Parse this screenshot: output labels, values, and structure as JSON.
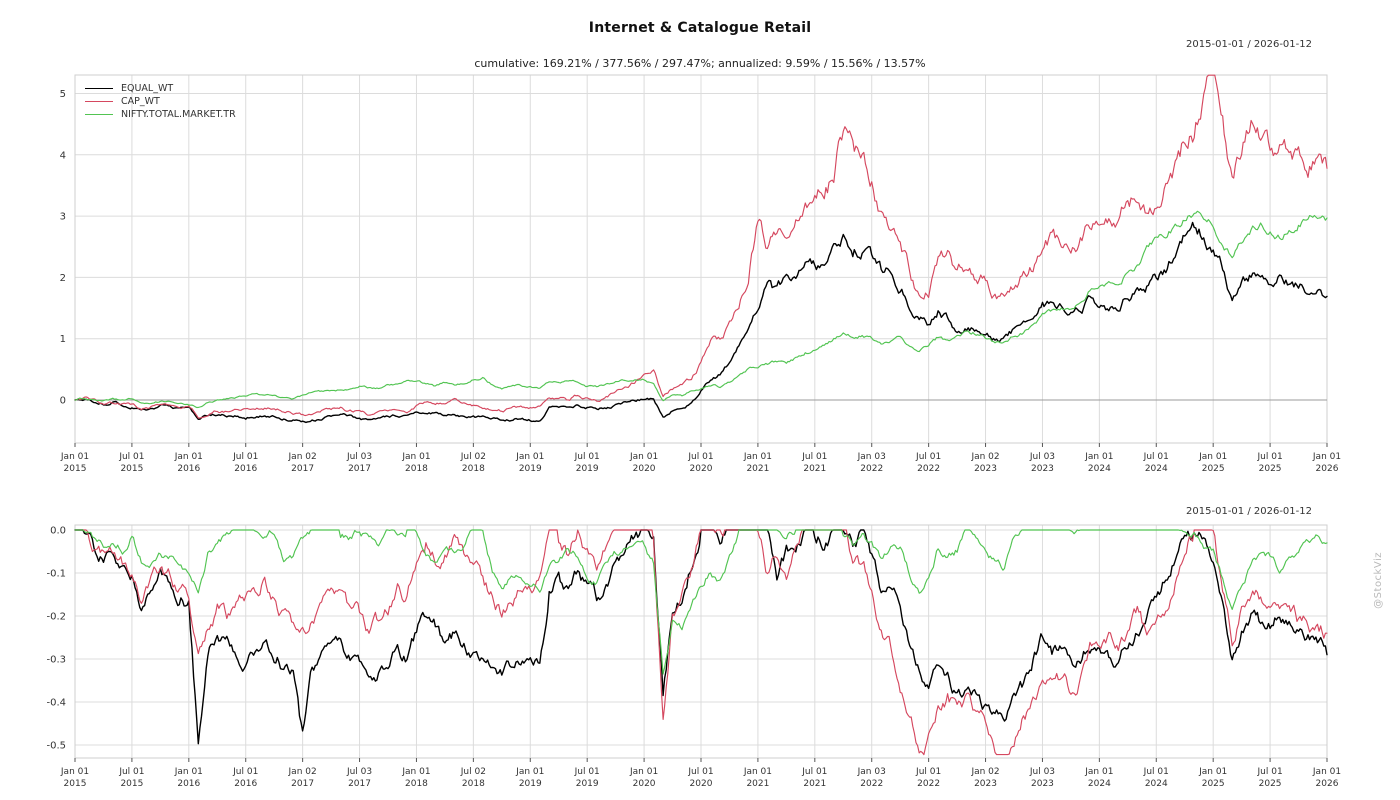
{
  "title": "Internet & Catalogue Retail",
  "subtitle": "cumulative: 169.21% / 377.56% / 297.47%; annualized: 9.59% / 15.56% / 13.57%",
  "date_range": "2015-01-01 / 2026-01-12",
  "watermark": "@StockViz",
  "colors": {
    "equal_wt": "#000000",
    "cap_wt": "#d5485f",
    "nifty": "#52c452",
    "grid": "#dcdcdc",
    "border": "#cfcfcf",
    "zero_line": "#9b9b9b",
    "tick": "#555555",
    "axis_text": "#333333",
    "watermark": "#b9b9b9"
  },
  "chart_data": [
    {
      "type": "line",
      "panel": "cumulative-return",
      "title": "Internet & Catalogue Retail",
      "subtitle": "cumulative: 169.21% / 377.56% / 297.47%; annualized: 9.59% / 15.56% / 13.57%",
      "x_unit": "month",
      "x_start": "2015-01",
      "x_end": "2026-01",
      "grid": true,
      "legend_position": "top-left",
      "ylim": [
        -0.7,
        5.3
      ],
      "yticks": [
        0,
        1,
        2,
        3,
        4,
        5
      ],
      "x_tick_labels": [
        [
          "Jan 01",
          "2015"
        ],
        [
          "Jul 01",
          "2015"
        ],
        [
          "Jan 01",
          "2016"
        ],
        [
          "Jul 01",
          "2016"
        ],
        [
          "Jan 02",
          "2017"
        ],
        [
          "Jul 03",
          "2017"
        ],
        [
          "Jan 01",
          "2018"
        ],
        [
          "Jul 02",
          "2018"
        ],
        [
          "Jan 01",
          "2019"
        ],
        [
          "Jul 01",
          "2019"
        ],
        [
          "Jan 01",
          "2020"
        ],
        [
          "Jul 01",
          "2020"
        ],
        [
          "Jan 01",
          "2021"
        ],
        [
          "Jul 01",
          "2021"
        ],
        [
          "Jan 03",
          "2022"
        ],
        [
          "Jul 01",
          "2022"
        ],
        [
          "Jan 02",
          "2023"
        ],
        [
          "Jul 03",
          "2023"
        ],
        [
          "Jan 01",
          "2024"
        ],
        [
          "Jul 01",
          "2024"
        ],
        [
          "Jan 01",
          "2025"
        ],
        [
          "Jul 01",
          "2025"
        ],
        [
          "Jan 01",
          "2026"
        ]
      ],
      "series": [
        {
          "name": "EQUAL_WT",
          "color": "#000000",
          "end_value": 1.6921,
          "values": [
            0.0,
            0.01,
            -0.03,
            -0.06,
            -0.04,
            -0.09,
            -0.11,
            -0.18,
            -0.13,
            -0.09,
            -0.11,
            -0.14,
            -0.15,
            -0.3,
            -0.26,
            -0.24,
            -0.26,
            -0.27,
            -0.29,
            -0.26,
            -0.24,
            -0.27,
            -0.3,
            -0.33,
            -0.36,
            -0.33,
            -0.3,
            -0.27,
            -0.25,
            -0.28,
            -0.3,
            -0.34,
            -0.32,
            -0.29,
            -0.26,
            -0.28,
            -0.23,
            -0.19,
            -0.22,
            -0.25,
            -0.23,
            -0.26,
            -0.28,
            -0.29,
            -0.31,
            -0.33,
            -0.31,
            -0.3,
            -0.32,
            -0.31,
            -0.13,
            -0.11,
            -0.14,
            -0.09,
            -0.12,
            -0.15,
            -0.12,
            -0.08,
            -0.04,
            0.0,
            0.03,
            0.01,
            -0.28,
            -0.18,
            -0.12,
            -0.04,
            0.15,
            0.3,
            0.4,
            0.6,
            0.9,
            1.2,
            1.55,
            2.1,
            1.8,
            1.95,
            1.85,
            2.15,
            2.25,
            2.2,
            2.35,
            2.55,
            2.4,
            2.5,
            2.3,
            2.05,
            2.15,
            1.9,
            1.6,
            1.35,
            1.25,
            1.45,
            1.35,
            1.15,
            1.2,
            1.15,
            1.08,
            1.0,
            1.02,
            1.12,
            1.25,
            1.5,
            1.65,
            1.52,
            1.58,
            1.42,
            1.48,
            1.58,
            1.52,
            1.45,
            1.48,
            1.68,
            1.78,
            1.85,
            2.0,
            2.15,
            2.35,
            2.6,
            2.78,
            2.7,
            2.55,
            2.15,
            1.62,
            1.92,
            2.08,
            1.95,
            1.92,
            2.02,
            1.95,
            1.88,
            1.82,
            1.75,
            1.69
          ]
        },
        {
          "name": "CAP_WT",
          "color": "#d5485f",
          "end_value": 3.7756,
          "values": [
            0.0,
            0.01,
            -0.02,
            -0.05,
            -0.03,
            -0.07,
            -0.09,
            -0.15,
            -0.11,
            -0.08,
            -0.1,
            -0.12,
            -0.13,
            -0.28,
            -0.23,
            -0.17,
            -0.19,
            -0.18,
            -0.16,
            -0.13,
            -0.11,
            -0.14,
            -0.18,
            -0.21,
            -0.24,
            -0.22,
            -0.18,
            -0.15,
            -0.13,
            -0.17,
            -0.19,
            -0.23,
            -0.21,
            -0.17,
            -0.13,
            -0.15,
            -0.08,
            -0.03,
            -0.06,
            -0.04,
            -0.01,
            -0.05,
            -0.08,
            -0.11,
            -0.14,
            -0.17,
            -0.14,
            -0.12,
            -0.14,
            -0.11,
            0.02,
            0.05,
            0.0,
            0.08,
            0.04,
            0.0,
            0.04,
            0.12,
            0.22,
            0.3,
            0.38,
            0.45,
            0.02,
            0.18,
            0.25,
            0.33,
            0.6,
            0.9,
            1.0,
            1.2,
            1.6,
            2.1,
            3.0,
            2.6,
            2.75,
            2.6,
            2.85,
            3.0,
            3.2,
            3.5,
            3.6,
            4.35,
            4.0,
            3.85,
            3.65,
            3.1,
            2.85,
            2.45,
            2.1,
            1.7,
            1.8,
            2.2,
            2.3,
            2.1,
            2.2,
            2.0,
            1.95,
            1.7,
            1.65,
            1.85,
            2.05,
            2.2,
            2.45,
            2.6,
            2.5,
            2.35,
            2.55,
            2.85,
            2.9,
            3.0,
            2.95,
            3.2,
            3.3,
            3.0,
            3.25,
            3.45,
            3.7,
            4.2,
            4.4,
            4.9,
            5.3,
            4.5,
            3.7,
            4.2,
            4.45,
            4.3,
            4.15,
            4.05,
            4.15,
            4.0,
            3.95,
            3.88,
            3.78
          ]
        },
        {
          "name": "NIFTY.TOTAL.MARKET.TR",
          "color": "#52c452",
          "end_value": 2.9747,
          "values": [
            0.0,
            0.03,
            0.01,
            -0.01,
            0.01,
            -0.01,
            0.02,
            -0.04,
            -0.04,
            -0.02,
            -0.03,
            -0.04,
            -0.07,
            -0.12,
            -0.03,
            0.0,
            0.02,
            0.04,
            0.07,
            0.09,
            0.08,
            0.09,
            0.03,
            0.02,
            0.07,
            0.11,
            0.13,
            0.15,
            0.17,
            0.17,
            0.22,
            0.2,
            0.19,
            0.25,
            0.24,
            0.29,
            0.33,
            0.26,
            0.22,
            0.28,
            0.26,
            0.28,
            0.33,
            0.38,
            0.25,
            0.18,
            0.23,
            0.23,
            0.21,
            0.2,
            0.28,
            0.29,
            0.31,
            0.3,
            0.22,
            0.21,
            0.26,
            0.3,
            0.32,
            0.34,
            0.33,
            0.27,
            0.0,
            0.1,
            0.07,
            0.15,
            0.2,
            0.25,
            0.22,
            0.28,
            0.4,
            0.52,
            0.55,
            0.58,
            0.62,
            0.6,
            0.68,
            0.78,
            0.8,
            0.88,
            1.0,
            1.1,
            1.02,
            1.05,
            1.02,
            0.95,
            1.0,
            1.02,
            0.9,
            0.78,
            0.9,
            1.02,
            0.95,
            1.0,
            1.1,
            1.08,
            1.02,
            0.95,
            0.92,
            1.05,
            1.12,
            1.22,
            1.38,
            1.42,
            1.5,
            1.45,
            1.58,
            1.78,
            1.85,
            1.95,
            2.0,
            2.1,
            2.2,
            2.45,
            2.6,
            2.72,
            2.85,
            2.95,
            3.07,
            2.95,
            2.88,
            2.6,
            2.35,
            2.6,
            2.75,
            2.88,
            2.82,
            2.72,
            2.8,
            2.88,
            2.95,
            3.0,
            2.97
          ]
        }
      ]
    },
    {
      "type": "line",
      "panel": "drawdown",
      "x_unit": "month",
      "x_start": "2015-01",
      "x_end": "2026-01",
      "grid": true,
      "ylim": [
        -0.53,
        0.01
      ],
      "yticks": [
        0.0,
        -0.1,
        -0.2,
        -0.3,
        -0.4,
        -0.5
      ],
      "series": [
        {
          "name": "EQUAL_WT",
          "color": "#000000",
          "values": [
            0.0,
            0.0,
            -0.04,
            -0.07,
            -0.05,
            -0.1,
            -0.12,
            -0.19,
            -0.14,
            -0.1,
            -0.12,
            -0.15,
            -0.16,
            -0.5,
            -0.27,
            -0.25,
            -0.27,
            -0.28,
            -0.3,
            -0.27,
            -0.25,
            -0.28,
            -0.31,
            -0.34,
            -0.49,
            -0.34,
            -0.31,
            -0.28,
            -0.26,
            -0.29,
            -0.31,
            -0.35,
            -0.33,
            -0.3,
            -0.27,
            -0.29,
            -0.24,
            -0.2,
            -0.23,
            -0.26,
            -0.24,
            -0.27,
            -0.29,
            -0.3,
            -0.32,
            -0.34,
            -0.32,
            -0.31,
            -0.33,
            -0.32,
            -0.14,
            -0.12,
            -0.15,
            -0.1,
            -0.13,
            -0.16,
            -0.13,
            -0.09,
            -0.05,
            -0.01,
            0.0,
            -0.02,
            -0.38,
            -0.2,
            -0.15,
            -0.07,
            0.0,
            0.0,
            -0.03,
            0.0,
            0.0,
            0.0,
            0.0,
            0.0,
            -0.1,
            -0.05,
            -0.08,
            0.0,
            0.0,
            -0.02,
            0.0,
            0.0,
            -0.04,
            -0.01,
            -0.07,
            -0.14,
            -0.11,
            -0.18,
            -0.27,
            -0.34,
            -0.37,
            -0.31,
            -0.34,
            -0.39,
            -0.38,
            -0.39,
            -0.41,
            -0.44,
            -0.43,
            -0.4,
            -0.37,
            -0.3,
            -0.25,
            -0.29,
            -0.27,
            -0.32,
            -0.3,
            -0.27,
            -0.29,
            -0.31,
            -0.3,
            -0.25,
            -0.22,
            -0.2,
            -0.16,
            -0.11,
            -0.06,
            -0.01,
            0.0,
            -0.02,
            -0.06,
            -0.17,
            -0.31,
            -0.23,
            -0.19,
            -0.22,
            -0.23,
            -0.2,
            -0.22,
            -0.24,
            -0.25,
            -0.27,
            -0.29
          ]
        },
        {
          "name": "CAP_WT",
          "color": "#d5485f",
          "values": [
            0.0,
            0.0,
            -0.03,
            -0.06,
            -0.04,
            -0.08,
            -0.1,
            -0.16,
            -0.12,
            -0.09,
            -0.11,
            -0.13,
            -0.14,
            -0.29,
            -0.24,
            -0.18,
            -0.2,
            -0.19,
            -0.17,
            -0.14,
            -0.12,
            -0.15,
            -0.19,
            -0.22,
            -0.25,
            -0.23,
            -0.19,
            -0.16,
            -0.14,
            -0.18,
            -0.2,
            -0.24,
            -0.22,
            -0.18,
            -0.14,
            -0.16,
            -0.09,
            -0.04,
            -0.07,
            -0.05,
            -0.02,
            -0.06,
            -0.09,
            -0.12,
            -0.15,
            -0.18,
            -0.15,
            -0.13,
            -0.15,
            -0.12,
            0.0,
            0.0,
            -0.05,
            0.0,
            -0.04,
            -0.07,
            -0.04,
            0.0,
            0.0,
            0.0,
            0.0,
            0.0,
            -0.43,
            -0.19,
            -0.14,
            -0.08,
            0.0,
            0.0,
            -0.02,
            0.0,
            0.0,
            0.0,
            0.0,
            -0.1,
            -0.06,
            -0.1,
            -0.04,
            0.0,
            0.0,
            0.0,
            0.0,
            0.0,
            -0.07,
            -0.09,
            -0.13,
            -0.23,
            -0.28,
            -0.36,
            -0.42,
            -0.5,
            -0.48,
            -0.4,
            -0.38,
            -0.42,
            -0.4,
            -0.44,
            -0.45,
            -0.5,
            -0.51,
            -0.47,
            -0.43,
            -0.4,
            -0.36,
            -0.33,
            -0.35,
            -0.37,
            -0.34,
            -0.28,
            -0.27,
            -0.25,
            -0.26,
            -0.22,
            -0.2,
            -0.25,
            -0.21,
            -0.17,
            -0.12,
            -0.03,
            0.0,
            0.0,
            0.0,
            -0.13,
            -0.25,
            -0.18,
            -0.14,
            -0.16,
            -0.18,
            -0.2,
            -0.18,
            -0.21,
            -0.21,
            -0.23,
            -0.24
          ]
        },
        {
          "name": "NIFTY.TOTAL.MARKET.TR",
          "color": "#52c452",
          "values": [
            0.0,
            0.0,
            -0.02,
            -0.04,
            -0.02,
            -0.04,
            -0.01,
            -0.07,
            -0.07,
            -0.05,
            -0.06,
            -0.07,
            -0.1,
            -0.15,
            -0.06,
            -0.03,
            -0.01,
            0.0,
            0.0,
            0.0,
            -0.01,
            0.0,
            -0.06,
            -0.06,
            -0.02,
            0.0,
            0.0,
            0.0,
            0.0,
            -0.01,
            0.0,
            -0.02,
            -0.03,
            0.0,
            -0.01,
            0.0,
            0.0,
            -0.05,
            -0.08,
            -0.04,
            -0.05,
            -0.04,
            0.0,
            0.0,
            -0.09,
            -0.15,
            -0.11,
            -0.11,
            -0.12,
            -0.13,
            -0.07,
            -0.07,
            -0.05,
            -0.06,
            -0.12,
            -0.12,
            -0.09,
            -0.06,
            -0.04,
            -0.03,
            -0.04,
            -0.08,
            -0.33,
            -0.2,
            -0.23,
            -0.17,
            -0.13,
            -0.09,
            -0.12,
            -0.07,
            0.0,
            0.0,
            0.0,
            0.0,
            0.0,
            -0.01,
            0.0,
            0.0,
            0.0,
            0.0,
            0.0,
            0.0,
            -0.04,
            -0.02,
            -0.04,
            -0.07,
            -0.05,
            -0.04,
            -0.1,
            -0.15,
            -0.1,
            -0.04,
            -0.07,
            -0.05,
            0.0,
            -0.01,
            -0.04,
            -0.07,
            -0.09,
            -0.02,
            0.0,
            0.0,
            0.0,
            0.0,
            0.0,
            -0.02,
            0.0,
            0.0,
            0.0,
            0.0,
            0.0,
            0.0,
            0.0,
            0.0,
            0.0,
            0.0,
            0.0,
            -0.01,
            0.0,
            -0.03,
            -0.05,
            -0.12,
            -0.18,
            -0.12,
            -0.08,
            -0.05,
            -0.06,
            -0.09,
            -0.07,
            -0.05,
            -0.03,
            -0.02,
            -0.03
          ]
        }
      ]
    }
  ]
}
